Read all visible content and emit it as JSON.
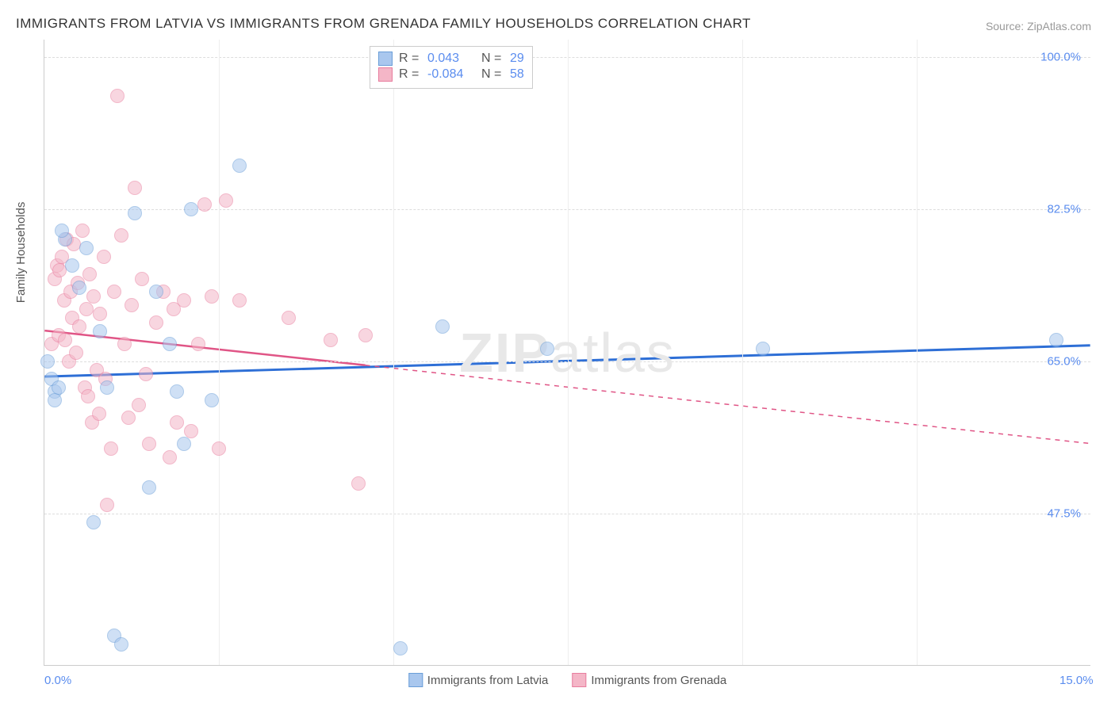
{
  "title": "IMMIGRANTS FROM LATVIA VS IMMIGRANTS FROM GRENADA FAMILY HOUSEHOLDS CORRELATION CHART",
  "source": "Source: ZipAtlas.com",
  "watermark_bold": "ZIP",
  "watermark_light": "atlas",
  "chart": {
    "type": "scatter",
    "y_axis_title": "Family Households",
    "background_color": "#ffffff",
    "grid_color": "#dddddd",
    "axis_color": "#cccccc",
    "xlim": [
      0.0,
      15.0
    ],
    "ylim": [
      30.0,
      102.0
    ],
    "x_ticks": [
      {
        "pos": 0.0,
        "label": "0.0%"
      },
      {
        "pos": 15.0,
        "label": "15.0%"
      }
    ],
    "y_ticks": [
      {
        "pos": 47.5,
        "label": "47.5%"
      },
      {
        "pos": 65.0,
        "label": "65.0%"
      },
      {
        "pos": 82.5,
        "label": "82.5%"
      },
      {
        "pos": 100.0,
        "label": "100.0%"
      }
    ],
    "x_grid_positions": [
      2.5,
      5.0,
      7.5,
      10.0,
      12.5
    ],
    "point_radius": 9,
    "point_opacity": 0.55,
    "series": {
      "latvia": {
        "label": "Immigrants from Latvia",
        "fill": "#a9c7ee",
        "stroke": "#6a9ed8",
        "R": "0.043",
        "N": "29",
        "trend": {
          "y_start": 63.2,
          "y_end": 66.8,
          "color": "#2e6fd6",
          "width": 3,
          "solid_until_x": 15.0
        },
        "points": [
          [
            0.05,
            65.0
          ],
          [
            0.1,
            63.0
          ],
          [
            0.15,
            61.5
          ],
          [
            0.15,
            60.5
          ],
          [
            0.2,
            62.0
          ],
          [
            0.3,
            79.0
          ],
          [
            0.4,
            76.0
          ],
          [
            0.5,
            73.5
          ],
          [
            0.6,
            78.0
          ],
          [
            0.7,
            46.5
          ],
          [
            0.8,
            68.5
          ],
          [
            1.0,
            33.5
          ],
          [
            1.1,
            32.5
          ],
          [
            1.3,
            82.0
          ],
          [
            1.5,
            50.5
          ],
          [
            1.6,
            73.0
          ],
          [
            1.8,
            67.0
          ],
          [
            1.9,
            61.5
          ],
          [
            2.0,
            55.5
          ],
          [
            2.1,
            82.5
          ],
          [
            2.4,
            60.5
          ],
          [
            2.8,
            87.5
          ],
          [
            5.7,
            69.0
          ],
          [
            5.1,
            32.0
          ],
          [
            7.2,
            66.5
          ],
          [
            10.3,
            66.5
          ],
          [
            14.5,
            67.5
          ],
          [
            0.25,
            80.0
          ],
          [
            0.9,
            62.0
          ]
        ]
      },
      "grenada": {
        "label": "Immigrants from Grenada",
        "fill": "#f4b6c7",
        "stroke": "#e87d9e",
        "R": "-0.084",
        "N": "58",
        "trend": {
          "y_start": 68.5,
          "y_end": 55.5,
          "color": "#e05586",
          "width": 2.5,
          "solid_until_x": 4.6
        },
        "points": [
          [
            0.1,
            67.0
          ],
          [
            0.15,
            74.5
          ],
          [
            0.18,
            76.0
          ],
          [
            0.2,
            68.0
          ],
          [
            0.22,
            75.5
          ],
          [
            0.25,
            77.0
          ],
          [
            0.28,
            72.0
          ],
          [
            0.3,
            67.5
          ],
          [
            0.32,
            79.0
          ],
          [
            0.35,
            65.0
          ],
          [
            0.38,
            73.0
          ],
          [
            0.4,
            70.0
          ],
          [
            0.42,
            78.5
          ],
          [
            0.45,
            66.0
          ],
          [
            0.48,
            74.0
          ],
          [
            0.5,
            69.0
          ],
          [
            0.55,
            80.0
          ],
          [
            0.58,
            62.0
          ],
          [
            0.6,
            71.0
          ],
          [
            0.62,
            61.0
          ],
          [
            0.65,
            75.0
          ],
          [
            0.68,
            58.0
          ],
          [
            0.7,
            72.5
          ],
          [
            0.75,
            64.0
          ],
          [
            0.78,
            59.0
          ],
          [
            0.8,
            70.5
          ],
          [
            0.85,
            77.0
          ],
          [
            0.88,
            63.0
          ],
          [
            0.9,
            48.5
          ],
          [
            0.95,
            55.0
          ],
          [
            1.0,
            73.0
          ],
          [
            1.05,
            95.5
          ],
          [
            1.1,
            79.5
          ],
          [
            1.15,
            67.0
          ],
          [
            1.2,
            58.5
          ],
          [
            1.25,
            71.5
          ],
          [
            1.3,
            85.0
          ],
          [
            1.35,
            60.0
          ],
          [
            1.4,
            74.5
          ],
          [
            1.45,
            63.5
          ],
          [
            1.5,
            55.5
          ],
          [
            1.6,
            69.5
          ],
          [
            1.7,
            73.0
          ],
          [
            1.8,
            54.0
          ],
          [
            1.85,
            71.0
          ],
          [
            1.9,
            58.0
          ],
          [
            2.0,
            72.0
          ],
          [
            2.1,
            57.0
          ],
          [
            2.2,
            67.0
          ],
          [
            2.3,
            83.0
          ],
          [
            2.4,
            72.5
          ],
          [
            2.5,
            55.0
          ],
          [
            2.6,
            83.5
          ],
          [
            2.8,
            72.0
          ],
          [
            3.5,
            70.0
          ],
          [
            4.1,
            67.5
          ],
          [
            4.5,
            51.0
          ],
          [
            4.6,
            68.0
          ]
        ]
      }
    }
  },
  "stats_box": {
    "R_label": "R =",
    "N_label": "N ="
  }
}
